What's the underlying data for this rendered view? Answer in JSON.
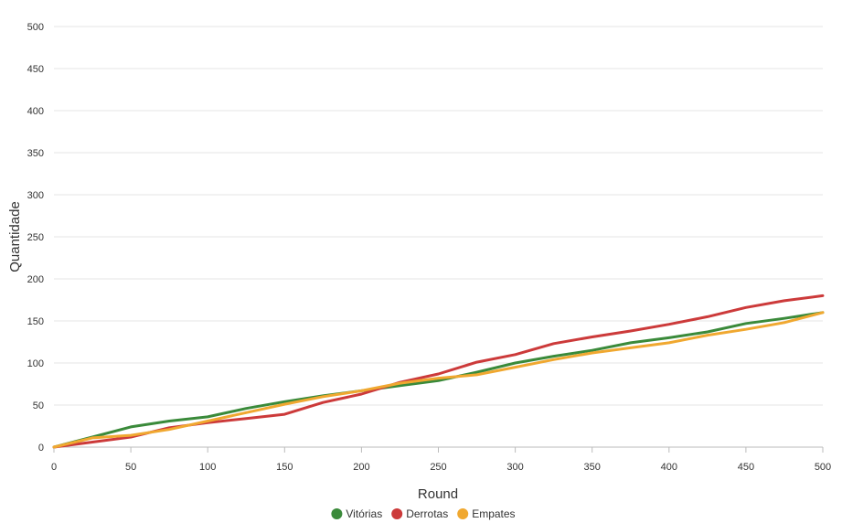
{
  "chart_data": {
    "type": "line",
    "xlabel": "Round",
    "ylabel": "Quantidade",
    "xlim": [
      0,
      500
    ],
    "ylim": [
      0,
      500
    ],
    "x_ticks": [
      "0",
      "50",
      "100",
      "150",
      "200",
      "250",
      "300",
      "350",
      "400",
      "450",
      "500"
    ],
    "y_ticks": [
      "0",
      "50",
      "100",
      "150",
      "200",
      "250",
      "300",
      "350",
      "400",
      "450",
      "500"
    ],
    "grid": true,
    "legend_position": "bottom-center",
    "x": [
      0,
      25,
      50,
      75,
      100,
      125,
      150,
      175,
      200,
      225,
      250,
      275,
      300,
      325,
      350,
      375,
      400,
      425,
      450,
      475,
      500
    ],
    "series": [
      {
        "name": "Vitórias",
        "color": "#3a8a3a",
        "values": [
          0,
          12,
          24,
          31,
          36,
          46,
          54,
          61,
          67,
          73,
          79,
          89,
          100,
          108,
          115,
          124,
          130,
          137,
          147,
          153,
          160
        ]
      },
      {
        "name": "Derrotas",
        "color": "#cc3a3a",
        "values": [
          0,
          6,
          12,
          23,
          29,
          34,
          39,
          53,
          63,
          77,
          87,
          101,
          110,
          123,
          131,
          138,
          146,
          155,
          166,
          174,
          180
        ]
      },
      {
        "name": "Empates",
        "color": "#f0a830",
        "values": [
          0,
          11,
          14,
          21,
          31,
          41,
          51,
          60,
          67,
          76,
          82,
          86,
          95,
          104,
          112,
          118,
          124,
          133,
          140,
          148,
          160
        ]
      }
    ]
  }
}
